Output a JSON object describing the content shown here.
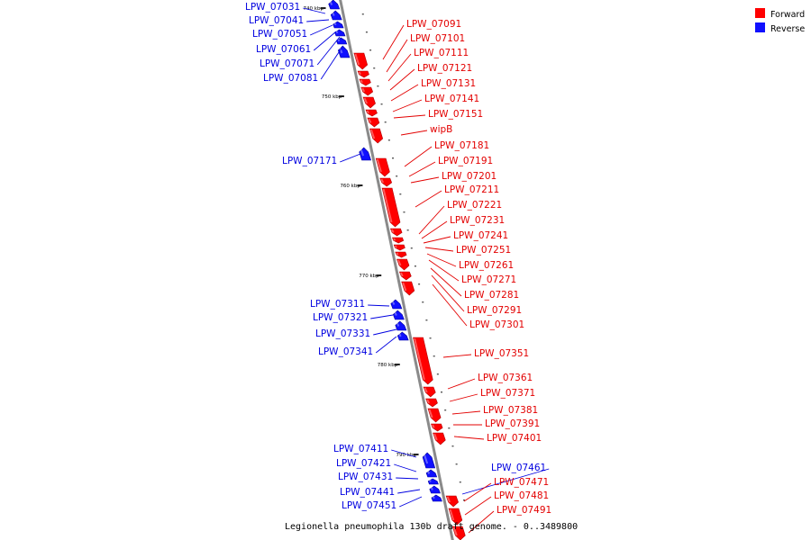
{
  "caption": "Legionella pneumophila 130b draft genome. - 0..3489800",
  "colors": {
    "forward": "#ff0000",
    "reverse": "#1010ff",
    "backbone": "#8a8a8a"
  },
  "legend": [
    {
      "label": "Forward",
      "color": "#ff0000",
      "strand": "forward"
    },
    {
      "label": "Reverse",
      "color": "#1010ff",
      "strand": "reverse"
    }
  ],
  "scale_marks": [
    "740 kbp",
    "750 kbp",
    "760 kbp",
    "770 kbp",
    "780 kbp",
    "790 kbp"
  ],
  "genes": [
    {
      "name": "LPW_07031",
      "strand": "reverse"
    },
    {
      "name": "LPW_07041",
      "strand": "reverse"
    },
    {
      "name": "LPW_07051",
      "strand": "reverse"
    },
    {
      "name": "LPW_07061",
      "strand": "reverse"
    },
    {
      "name": "LPW_07071",
      "strand": "reverse"
    },
    {
      "name": "LPW_07081",
      "strand": "reverse"
    },
    {
      "name": "LPW_07091",
      "strand": "forward"
    },
    {
      "name": "LPW_07101",
      "strand": "forward"
    },
    {
      "name": "LPW_07111",
      "strand": "forward"
    },
    {
      "name": "LPW_07121",
      "strand": "forward"
    },
    {
      "name": "LPW_07131",
      "strand": "forward"
    },
    {
      "name": "LPW_07141",
      "strand": "forward"
    },
    {
      "name": "LPW_07151",
      "strand": "forward"
    },
    {
      "name": "wipB",
      "strand": "forward"
    },
    {
      "name": "LPW_07171",
      "strand": "reverse"
    },
    {
      "name": "LPW_07181",
      "strand": "forward"
    },
    {
      "name": "LPW_07191",
      "strand": "forward"
    },
    {
      "name": "LPW_07201",
      "strand": "forward"
    },
    {
      "name": "LPW_07211",
      "strand": "forward"
    },
    {
      "name": "LPW_07221",
      "strand": "forward"
    },
    {
      "name": "LPW_07231",
      "strand": "forward"
    },
    {
      "name": "LPW_07241",
      "strand": "forward"
    },
    {
      "name": "LPW_07251",
      "strand": "forward"
    },
    {
      "name": "LPW_07261",
      "strand": "forward"
    },
    {
      "name": "LPW_07271",
      "strand": "forward"
    },
    {
      "name": "LPW_07281",
      "strand": "forward"
    },
    {
      "name": "LPW_07291",
      "strand": "forward"
    },
    {
      "name": "LPW_07301",
      "strand": "forward"
    },
    {
      "name": "LPW_07311",
      "strand": "reverse"
    },
    {
      "name": "LPW_07321",
      "strand": "reverse"
    },
    {
      "name": "LPW_07331",
      "strand": "reverse"
    },
    {
      "name": "LPW_07341",
      "strand": "reverse"
    },
    {
      "name": "LPW_07351",
      "strand": "forward"
    },
    {
      "name": "LPW_07361",
      "strand": "forward"
    },
    {
      "name": "LPW_07371",
      "strand": "forward"
    },
    {
      "name": "LPW_07381",
      "strand": "forward"
    },
    {
      "name": "LPW_07391",
      "strand": "forward"
    },
    {
      "name": "LPW_07401",
      "strand": "forward"
    },
    {
      "name": "LPW_07411",
      "strand": "reverse"
    },
    {
      "name": "LPW_07421",
      "strand": "reverse"
    },
    {
      "name": "LPW_07431",
      "strand": "reverse"
    },
    {
      "name": "LPW_07441",
      "strand": "reverse"
    },
    {
      "name": "LPW_07451",
      "strand": "reverse"
    },
    {
      "name": "LPW_07461",
      "strand": "reverse"
    },
    {
      "name": "LPW_07471",
      "strand": "forward"
    },
    {
      "name": "LPW_07481",
      "strand": "forward"
    },
    {
      "name": "LPW_07491",
      "strand": "forward"
    }
  ]
}
